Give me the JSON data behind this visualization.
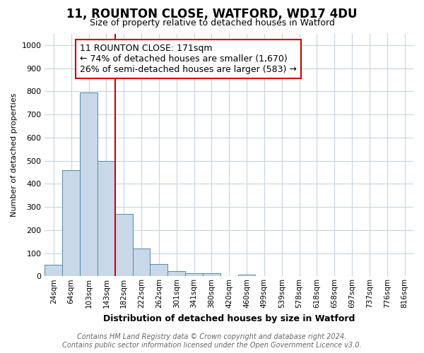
{
  "title": "11, ROUNTON CLOSE, WATFORD, WD17 4DU",
  "subtitle": "Size of property relative to detached houses in Watford",
  "xlabel": "Distribution of detached houses by size in Watford",
  "ylabel": "Number of detached properties",
  "footnote1": "Contains HM Land Registry data © Crown copyright and database right 2024.",
  "footnote2": "Contains public sector information licensed under the Open Government Licence v3.0.",
  "bin_labels": [
    "24sqm",
    "64sqm",
    "103sqm",
    "143sqm",
    "182sqm",
    "222sqm",
    "262sqm",
    "301sqm",
    "341sqm",
    "380sqm",
    "420sqm",
    "460sqm",
    "499sqm",
    "539sqm",
    "578sqm",
    "618sqm",
    "658sqm",
    "697sqm",
    "737sqm",
    "776sqm",
    "816sqm"
  ],
  "bar_heights": [
    49,
    458,
    795,
    500,
    270,
    120,
    52,
    22,
    13,
    12,
    0,
    8,
    0,
    0,
    0,
    0,
    0,
    0,
    0,
    0,
    0
  ],
  "bar_color": "#c8d8e8",
  "bar_edge_color": "#5588aa",
  "vline_x_index": 4,
  "vline_color": "#cc0000",
  "ylim": [
    0,
    1050
  ],
  "yticks": [
    0,
    100,
    200,
    300,
    400,
    500,
    600,
    700,
    800,
    900,
    1000
  ],
  "annotation_line1": "11 ROUNTON CLOSE: 171sqm",
  "annotation_line2": "← 74% of detached houses are smaller (1,670)",
  "annotation_line3": "26% of semi-detached houses are larger (583) →",
  "annotation_box_facecolor": "#ffffff",
  "annotation_box_edgecolor": "#cc0000",
  "title_fontsize": 12,
  "subtitle_fontsize": 9,
  "annotation_fontsize": 9,
  "ylabel_fontsize": 8,
  "xlabel_fontsize": 9,
  "footnote_fontsize": 7,
  "tick_fontsize": 7.5,
  "ytick_fontsize": 8
}
